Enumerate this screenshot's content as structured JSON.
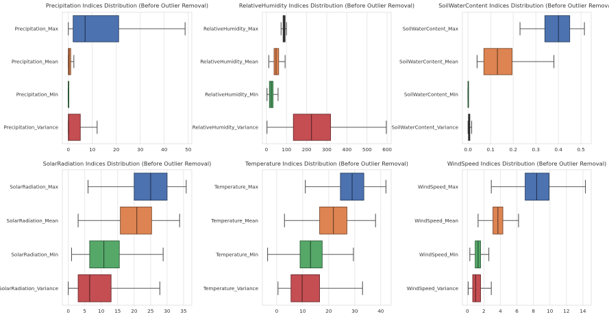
{
  "chart_data": [
    {
      "type": "boxplot",
      "title": "Precipitation Indices Distribution (Before Outlier Removal)",
      "xlabel": "",
      "ylabel": "",
      "xlim": [
        -2.5,
        51.5
      ],
      "xticks": [
        0,
        10,
        20,
        30,
        40,
        50
      ],
      "grid": true,
      "categories": [
        "Precipitation_Max",
        "Precipitation_Mean",
        "Precipitation_Min",
        "Precipitation_Variance"
      ],
      "boxes": [
        {
          "whislo": 0,
          "q1": 2,
          "med": 7,
          "q3": 21,
          "whishi": 48.7,
          "color": "#4c72b0"
        },
        {
          "whislo": 0,
          "q1": 0,
          "med": 0.3,
          "q3": 1,
          "whishi": 2.3,
          "color": "#dd8452"
        },
        {
          "whislo": 0,
          "q1": 0,
          "med": 0,
          "q3": 0,
          "whishi": 0,
          "color": "#55a868"
        },
        {
          "whislo": 0,
          "q1": 0,
          "med": 0.1,
          "q3": 5,
          "whishi": 12,
          "color": "#c44e52"
        }
      ]
    },
    {
      "type": "boxplot",
      "title": "RelativeHumidity Indices Distribution (Before Outlier Removal)",
      "xlabel": "",
      "ylabel": "",
      "xlim": [
        -20,
        620
      ],
      "xticks": [
        0,
        100,
        200,
        300,
        400,
        500,
        600
      ],
      "grid": true,
      "categories": [
        "RelativeHumidity_Max",
        "RelativeHumidity_Mean",
        "RelativeHumidity_Min",
        "RelativeHumidity_Variance"
      ],
      "boxes": [
        {
          "whislo": 73,
          "q1": 83,
          "med": 89,
          "q3": 93,
          "whishi": 100,
          "color": "#4c4c4c"
        },
        {
          "whislo": 12,
          "q1": 38,
          "med": 48,
          "q3": 61,
          "whishi": 93,
          "color": "#dd8452"
        },
        {
          "whislo": 3,
          "q1": 15,
          "med": 24,
          "q3": 33,
          "whishi": 58,
          "color": "#55a868"
        },
        {
          "whislo": 3,
          "q1": 134,
          "med": 224,
          "q3": 319,
          "whishi": 596,
          "color": "#c44e52"
        }
      ]
    },
    {
      "type": "boxplot",
      "title": "SoilWaterContent Indices Distribution (Before Outlier Removal)",
      "xlabel": "",
      "ylabel": "",
      "xlim": [
        -0.025,
        0.545
      ],
      "xticks": [
        0.0,
        0.1,
        0.2,
        0.3,
        0.4,
        0.5
      ],
      "grid": true,
      "categories": [
        "SoilWaterContent_Max",
        "SoilWaterContent_Mean",
        "SoilWaterContent_Min",
        "SoilWaterContent_Variance"
      ],
      "boxes": [
        {
          "whislo": 0.23,
          "q1": 0.34,
          "med": 0.4,
          "q3": 0.45,
          "whishi": 0.515,
          "color": "#4c72b0"
        },
        {
          "whislo": 0.04,
          "q1": 0.07,
          "med": 0.13,
          "q3": 0.195,
          "whishi": 0.38,
          "color": "#dd8452"
        },
        {
          "whislo": 0,
          "q1": 0,
          "med": 0,
          "q3": 0,
          "whishi": 0,
          "color": "#55a868"
        },
        {
          "whislo": 0,
          "q1": 0.002,
          "med": 0.005,
          "q3": 0.008,
          "whishi": 0.016,
          "color": "#4c4c4c"
        }
      ]
    },
    {
      "type": "boxplot",
      "title": "SolarRadiation Indices Distribution (Before Outlier Removal)",
      "xlabel": "",
      "ylabel": "",
      "xlim": [
        -1.8,
        37.5
      ],
      "xticks": [
        0,
        5,
        10,
        15,
        20,
        25,
        30,
        35
      ],
      "grid": true,
      "categories": [
        "SolarRadiation_Max",
        "SolarRadiation_Mean",
        "SolarRadiation_Min",
        "SolarRadiation_Variance"
      ],
      "boxes": [
        {
          "whislo": 6,
          "q1": 20,
          "med": 25,
          "q3": 30,
          "whishi": 35.8,
          "color": "#4c72b0"
        },
        {
          "whislo": 3,
          "q1": 15.8,
          "med": 20.8,
          "q3": 25.3,
          "whishi": 33.8,
          "color": "#dd8452"
        },
        {
          "whislo": 1,
          "q1": 6.5,
          "med": 10.8,
          "q3": 15.5,
          "whishi": 28.8,
          "color": "#55a868"
        },
        {
          "whislo": 0,
          "q1": 3,
          "med": 6.5,
          "q3": 13,
          "whishi": 27.8,
          "color": "#c44e52"
        }
      ]
    },
    {
      "type": "boxplot",
      "title": "Temperature Indices Distribution (Before Outlier Removal)",
      "xlabel": "",
      "ylabel": "",
      "xlim": [
        -5.5,
        44
      ],
      "xticks": [
        0,
        10,
        20,
        30,
        40
      ],
      "grid": true,
      "categories": [
        "Temperature_Max",
        "Temperature_Mean",
        "Temperature_Min",
        "Temperature_Variance"
      ],
      "boxes": [
        {
          "whislo": 11,
          "q1": 24.5,
          "med": 29,
          "q3": 33.5,
          "whishi": 42,
          "color": "#4c72b0"
        },
        {
          "whislo": 3,
          "q1": 16.5,
          "med": 21.8,
          "q3": 27,
          "whishi": 38,
          "color": "#dd8452"
        },
        {
          "whislo": -3.5,
          "q1": 9,
          "med": 13,
          "q3": 17.5,
          "whishi": 29.5,
          "color": "#55a868"
        },
        {
          "whislo": 0.5,
          "q1": 5.5,
          "med": 9.8,
          "q3": 16.5,
          "whishi": 33,
          "color": "#c44e52"
        }
      ]
    },
    {
      "type": "boxplot",
      "title": "WindSpeed Indices Distribution (Before Outlier Removal)",
      "xlabel": "",
      "ylabel": "",
      "xlim": [
        -0.6,
        15
      ],
      "xticks": [
        0,
        2,
        4,
        6,
        8,
        10,
        12,
        14
      ],
      "grid": true,
      "categories": [
        "WindSpeed_Max",
        "WindSpeed_Mean",
        "WindSpeed_Min",
        "WindSpeed_Variance"
      ],
      "boxes": [
        {
          "whislo": 2.9,
          "q1": 7,
          "med": 8.4,
          "q3": 9.9,
          "whishi": 14.3,
          "color": "#4c72b0"
        },
        {
          "whislo": 1.3,
          "q1": 3.1,
          "med": 3.7,
          "q3": 4.3,
          "whishi": 6.2,
          "color": "#dd8452"
        },
        {
          "whislo": 0.3,
          "q1": 0.95,
          "med": 1.3,
          "q3": 1.6,
          "whishi": 2.6,
          "color": "#55a868"
        },
        {
          "whislo": 0.1,
          "q1": 0.65,
          "med": 1.0,
          "q3": 1.6,
          "whishi": 2.9,
          "color": "#c44e52"
        }
      ]
    }
  ]
}
